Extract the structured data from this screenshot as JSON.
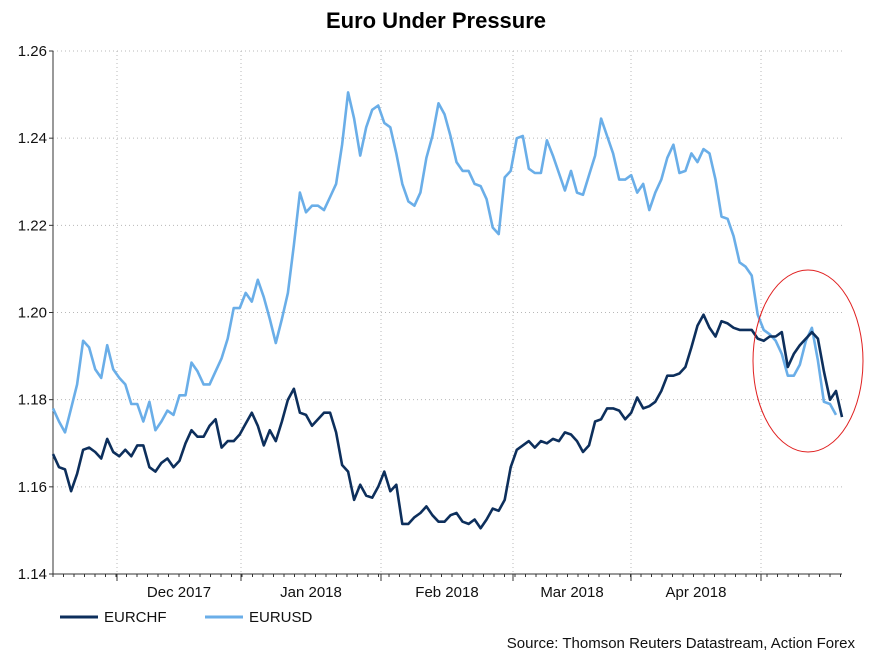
{
  "chart_data": {
    "type": "line",
    "title": "Euro Under Pressure",
    "xlabel": "",
    "ylabel": "",
    "ylim": [
      1.14,
      1.26
    ],
    "yticks": [
      "1.14",
      "1.16",
      "1.18",
      "1.20",
      "1.22",
      "1.24",
      "1.26"
    ],
    "xticks": [
      "Dec 2017",
      "Jan 2018",
      "Feb 2018",
      "Mar 2018",
      "Apr 2018"
    ],
    "grid": true,
    "legend_position": "bottom-left",
    "source": "Source: Thomson Reuters Datastream, Action Forex",
    "annotation": "red circle highlighting late April 2018 decline",
    "series": [
      {
        "name": "EURCHF",
        "color": "#0d2f5c",
        "values": [
          1.1675,
          1.1645,
          1.164,
          1.159,
          1.163,
          1.1685,
          1.169,
          1.168,
          1.1665,
          1.171,
          1.168,
          1.167,
          1.1685,
          1.167,
          1.1695,
          1.1695,
          1.1645,
          1.1635,
          1.1655,
          1.1665,
          1.1645,
          1.166,
          1.17,
          1.173,
          1.1715,
          1.1715,
          1.174,
          1.1755,
          1.169,
          1.1705,
          1.1705,
          1.172,
          1.1745,
          1.177,
          1.174,
          1.1695,
          1.173,
          1.1705,
          1.175,
          1.18,
          1.1825,
          1.177,
          1.1765,
          1.174,
          1.1755,
          1.177,
          1.177,
          1.1725,
          1.165,
          1.1635,
          1.157,
          1.1605,
          1.158,
          1.1575,
          1.16,
          1.1635,
          1.159,
          1.1605,
          1.1515,
          1.1515,
          1.153,
          1.154,
          1.1555,
          1.1535,
          1.152,
          1.152,
          1.1535,
          1.154,
          1.152,
          1.1515,
          1.1525,
          1.1505,
          1.1525,
          1.155,
          1.1545,
          1.157,
          1.1645,
          1.1685,
          1.1695,
          1.1705,
          1.169,
          1.1705,
          1.17,
          1.171,
          1.1705,
          1.1725,
          1.172,
          1.1705,
          1.168,
          1.1695,
          1.175,
          1.1755,
          1.178,
          1.178,
          1.1775,
          1.1755,
          1.177,
          1.1805,
          1.178,
          1.1785,
          1.1795,
          1.182,
          1.1855,
          1.1855,
          1.186,
          1.1875,
          1.192,
          1.197,
          1.1995,
          1.1965,
          1.1945,
          1.198,
          1.1975,
          1.1965,
          1.196,
          1.196,
          1.196,
          1.194,
          1.1935,
          1.1945,
          1.1945,
          1.1955,
          1.1875,
          1.1905,
          1.1925,
          1.194,
          1.1955,
          1.194,
          1.1865,
          1.18,
          1.182,
          1.176
        ]
      },
      {
        "name": "EURUSD",
        "color": "#6aaee8",
        "values": [
          1.178,
          1.175,
          1.1725,
          1.178,
          1.1835,
          1.1935,
          1.192,
          1.187,
          1.185,
          1.1925,
          1.187,
          1.185,
          1.1835,
          1.179,
          1.179,
          1.175,
          1.1795,
          1.173,
          1.175,
          1.1775,
          1.1765,
          1.181,
          1.181,
          1.1885,
          1.1865,
          1.1835,
          1.1835,
          1.1865,
          1.1895,
          1.194,
          1.201,
          1.201,
          1.2045,
          1.2025,
          1.2075,
          1.2035,
          1.1985,
          1.193,
          1.1985,
          1.2045,
          1.2155,
          1.2275,
          1.223,
          1.2245,
          1.2245,
          1.2235,
          1.2265,
          1.2295,
          1.2385,
          1.2505,
          1.2445,
          1.236,
          1.2425,
          1.2465,
          1.2475,
          1.2435,
          1.2425,
          1.2365,
          1.2295,
          1.2255,
          1.2245,
          1.2275,
          1.2355,
          1.2405,
          1.248,
          1.2455,
          1.2405,
          1.2345,
          1.2325,
          1.2325,
          1.2295,
          1.229,
          1.226,
          1.2195,
          1.218,
          1.231,
          1.2325,
          1.24,
          1.2405,
          1.233,
          1.232,
          1.232,
          1.2395,
          1.236,
          1.232,
          1.228,
          1.2325,
          1.2275,
          1.227,
          1.2315,
          1.236,
          1.2445,
          1.2405,
          1.2365,
          1.2305,
          1.2305,
          1.2315,
          1.2275,
          1.2295,
          1.2235,
          1.2275,
          1.2305,
          1.2355,
          1.2385,
          1.232,
          1.2325,
          1.2365,
          1.2345,
          1.2375,
          1.2365,
          1.2305,
          1.222,
          1.2215,
          1.2175,
          1.2115,
          1.2105,
          1.2085,
          1.1995,
          1.196,
          1.195,
          1.1935,
          1.1905,
          1.1855,
          1.1855,
          1.188,
          1.1935,
          1.1965,
          1.189,
          1.1795,
          1.179,
          1.1765
        ]
      }
    ]
  }
}
